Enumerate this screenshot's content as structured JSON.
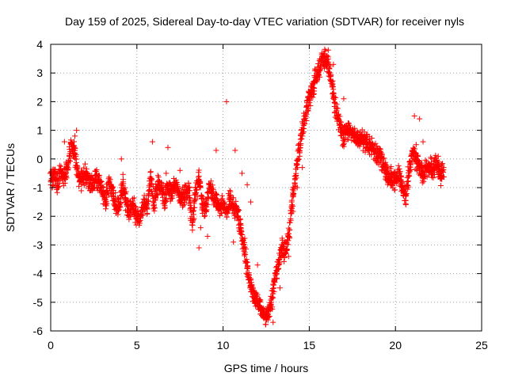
{
  "chart_data": {
    "type": "scatter",
    "title": "Day 159 of 2025, Sidereal Day-to-day VTEC variation (SDTVAR) for receiver nyls",
    "xlabel": "GPS time / hours",
    "ylabel": "SDTVAR / TECUs",
    "xlim": [
      0,
      25
    ],
    "ylim": [
      -6,
      4
    ],
    "xticks": [
      0,
      5,
      10,
      15,
      20,
      25
    ],
    "yticks": [
      -6,
      -5,
      -4,
      -3,
      -2,
      -1,
      0,
      1,
      2,
      3,
      4
    ],
    "xtick_labels": [
      "0",
      "5",
      "10",
      "15",
      "20",
      "25"
    ],
    "ytick_labels": [
      "-6",
      "-5",
      "-4",
      "-3",
      "-2",
      "-1",
      "0",
      "1",
      "2",
      "3",
      "4"
    ],
    "grid": true,
    "marker": "+",
    "color": "#ff0000",
    "series": [
      {
        "name": "SDTVAR",
        "x": [
          0.0,
          0.2,
          0.4,
          0.6,
          0.8,
          1.0,
          1.2,
          1.4,
          1.6,
          1.8,
          2.0,
          2.2,
          2.4,
          2.6,
          2.8,
          3.0,
          3.2,
          3.4,
          3.6,
          3.8,
          4.0,
          4.2,
          4.4,
          4.6,
          4.8,
          5.0,
          5.2,
          5.4,
          5.6,
          5.8,
          6.0,
          6.2,
          6.4,
          6.6,
          6.8,
          7.0,
          7.2,
          7.4,
          7.6,
          7.8,
          8.0,
          8.2,
          8.4,
          8.6,
          8.8,
          9.0,
          9.2,
          9.4,
          9.6,
          9.8,
          10.0,
          10.2,
          10.4,
          10.6,
          10.8,
          11.0,
          11.2,
          11.4,
          11.6,
          11.8,
          12.0,
          12.2,
          12.4,
          12.6,
          12.8,
          13.0,
          13.2,
          13.4,
          13.6,
          13.8,
          14.0,
          14.2,
          14.4,
          14.6,
          14.8,
          15.0,
          15.2,
          15.4,
          15.6,
          15.8,
          16.0,
          16.2,
          16.4,
          16.6,
          16.8,
          17.0,
          17.2,
          17.4,
          17.6,
          17.8,
          18.0,
          18.2,
          18.4,
          18.6,
          18.8,
          19.0,
          19.2,
          19.4,
          19.6,
          19.8,
          20.0,
          20.2,
          20.4,
          20.6,
          20.8,
          21.0,
          21.2,
          21.4,
          21.6,
          21.8,
          22.0,
          22.2,
          22.4,
          22.6,
          22.8,
          1.4,
          1.5,
          0.8,
          4.1,
          5.9,
          6.7,
          6.8,
          9.6,
          10.2,
          10.7,
          11.1,
          11.4,
          11.6,
          13.1,
          13.3,
          14.3,
          14.6,
          15.8,
          16.1,
          16.4,
          17.0,
          21.1,
          21.2,
          21.4,
          21.6,
          8.6,
          8.7,
          10.6,
          0.1,
          0.9,
          2.3,
          3.5,
          5.6,
          7.5,
          9.1,
          12.0,
          12.9,
          13.8,
          19.9,
          20.3
        ],
        "y": [
          -0.8,
          -0.5,
          -0.9,
          -0.4,
          -0.7,
          -0.2,
          0.5,
          0.3,
          -0.6,
          -0.8,
          -0.5,
          -0.7,
          -0.9,
          -0.6,
          -0.8,
          -1.2,
          -1.5,
          -0.8,
          -1.2,
          -1.7,
          -1.6,
          -0.8,
          -1.6,
          -1.8,
          -1.6,
          -2.1,
          -2.0,
          -1.5,
          -1.7,
          -0.7,
          -1.6,
          -0.9,
          -1.0,
          -1.5,
          -0.9,
          -1.3,
          -0.8,
          -1.1,
          -1.4,
          -1.2,
          -1.0,
          -2.3,
          -1.2,
          -0.6,
          -1.6,
          -1.8,
          -0.9,
          -1.2,
          -1.5,
          -1.7,
          -1.6,
          -1.9,
          -1.4,
          -1.7,
          -1.8,
          -2.4,
          -3.0,
          -3.8,
          -4.4,
          -4.8,
          -5.0,
          -5.3,
          -5.5,
          -5.4,
          -5.0,
          -4.2,
          -3.6,
          -3.1,
          -3.3,
          -2.7,
          -1.6,
          -0.6,
          0.3,
          0.9,
          1.6,
          2.1,
          2.5,
          2.9,
          3.1,
          3.6,
          3.4,
          3.0,
          2.2,
          1.5,
          1.2,
          0.7,
          1.0,
          0.9,
          0.8,
          0.6,
          0.7,
          0.6,
          0.5,
          0.4,
          0.3,
          0.1,
          0.0,
          -0.3,
          -0.7,
          -0.6,
          -0.8,
          -0.5,
          -1.0,
          -1.3,
          -0.4,
          0.3,
          -0.1,
          -0.2,
          -0.6,
          -0.3,
          -0.2,
          -0.4,
          -0.1,
          -0.6,
          -0.3,
          0.8,
          1.0,
          0.6,
          0.0,
          0.6,
          -0.5,
          0.4,
          0.3,
          2.0,
          0.3,
          -0.5,
          -0.9,
          -1.5,
          -4.0,
          -4.5,
          -1.0,
          -0.3,
          3.3,
          3.8,
          3.3,
          2.1,
          1.5,
          0.5,
          1.4,
          0.6,
          -3.1,
          -2.4,
          -2.9,
          -1.0,
          -0.3,
          -1.1,
          -1.2,
          -1.9,
          -0.4,
          -2.7,
          -3.7,
          -5.7,
          -3.4,
          -0.6,
          -0.9
        ]
      }
    ]
  }
}
